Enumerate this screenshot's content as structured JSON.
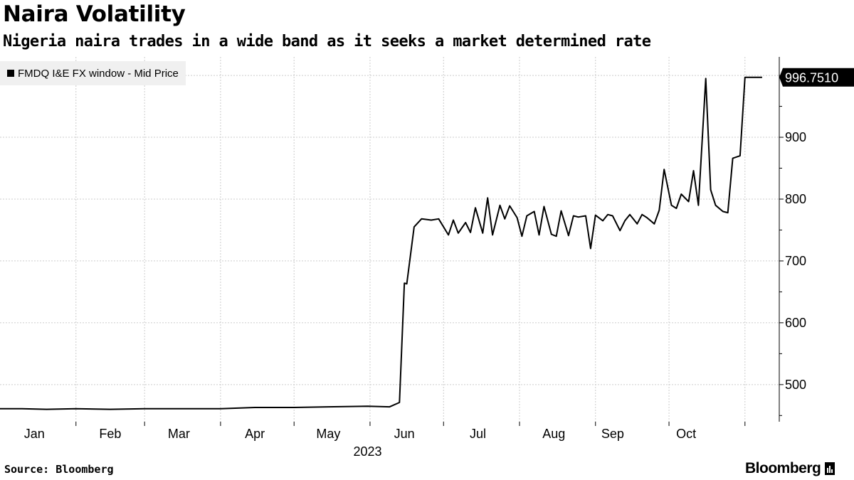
{
  "title": "Naira Volatility",
  "subtitle": "Nigeria naira trades in a wide band as it seeks a market determined rate",
  "legend_label": "FMDQ I&E FX window - Mid Price",
  "source": "Source: Bloomberg",
  "brand": "Bloomberg",
  "colors": {
    "line": "#000000",
    "grid": "#cccccc",
    "legend_bg": "#f0f0f0"
  },
  "chart_data": {
    "type": "line",
    "title": "Naira Volatility",
    "subtitle": "Nigeria naira trades in a wide band as it seeks a market determined rate",
    "xlabel": "",
    "ylabel": "",
    "ylim": [
      440,
      1030
    ],
    "xlim": [
      "2023-01-01",
      "2023-11-15"
    ],
    "y_ticks": [
      500,
      600,
      700,
      800,
      900
    ],
    "x_ticks": [
      {
        "date": "2023-01-15",
        "label": "Jan"
      },
      {
        "date": "2023-02-15",
        "label": "Feb"
      },
      {
        "date": "2023-03-15",
        "label": "Mar"
      },
      {
        "date": "2023-04-15",
        "label": "Apr"
      },
      {
        "date": "2023-05-15",
        "label": "May"
      },
      {
        "date": "2023-06-15",
        "label": "Jun"
      },
      {
        "date": "2023-07-15",
        "label": "Jul"
      },
      {
        "date": "2023-08-15",
        "label": "Aug"
      },
      {
        "date": "2023-09-08",
        "label": "Sep"
      },
      {
        "date": "2023-10-08",
        "label": "Oct"
      }
    ],
    "year_label": "2023",
    "last_value_label": "996.7510",
    "grid": true,
    "legend_position": "top-left",
    "series": [
      {
        "name": "FMDQ I&E FX window - Mid Price",
        "x": [
          "2023-01-01",
          "2023-01-10",
          "2023-01-20",
          "2023-02-01",
          "2023-02-15",
          "2023-03-01",
          "2023-03-15",
          "2023-04-01",
          "2023-04-15",
          "2023-05-01",
          "2023-05-15",
          "2023-05-31",
          "2023-06-09",
          "2023-06-13",
          "2023-06-15",
          "2023-06-16",
          "2023-06-19",
          "2023-06-22",
          "2023-06-26",
          "2023-06-29",
          "2023-07-03",
          "2023-07-05",
          "2023-07-07",
          "2023-07-10",
          "2023-07-12",
          "2023-07-14",
          "2023-07-17",
          "2023-07-19",
          "2023-07-21",
          "2023-07-24",
          "2023-07-26",
          "2023-07-28",
          "2023-07-31",
          "2023-08-02",
          "2023-08-04",
          "2023-08-07",
          "2023-08-09",
          "2023-08-11",
          "2023-08-14",
          "2023-08-16",
          "2023-08-18",
          "2023-08-21",
          "2023-08-23",
          "2023-08-25",
          "2023-08-28",
          "2023-08-30",
          "2023-09-01",
          "2023-09-04",
          "2023-09-06",
          "2023-09-08",
          "2023-09-11",
          "2023-09-13",
          "2023-09-15",
          "2023-09-18",
          "2023-09-20",
          "2023-09-22",
          "2023-09-25",
          "2023-09-27",
          "2023-09-29",
          "2023-10-02",
          "2023-10-04",
          "2023-10-06",
          "2023-10-09",
          "2023-10-11",
          "2023-10-13",
          "2023-10-16",
          "2023-10-18",
          "2023-10-20",
          "2023-10-23",
          "2023-10-25",
          "2023-10-27",
          "2023-10-30",
          "2023-11-01",
          "2023-11-03",
          "2023-11-06",
          "2023-11-08"
        ],
        "values": [
          461,
          461,
          460,
          461,
          460,
          461,
          461,
          461,
          463,
          463,
          464,
          465,
          464,
          471,
          664,
          663,
          755,
          768,
          766,
          768,
          742,
          766,
          745,
          762,
          746,
          786,
          745,
          802,
          742,
          790,
          768,
          789,
          770,
          740,
          773,
          780,
          742,
          788,
          743,
          740,
          781,
          741,
          773,
          771,
          773,
          720,
          774,
          765,
          775,
          773,
          749,
          765,
          775,
          760,
          775,
          770,
          760,
          782,
          848,
          790,
          785,
          808,
          796,
          846,
          790,
          995,
          815,
          790,
          780,
          778,
          866,
          870,
          997,
          997,
          997,
          997
        ]
      }
    ]
  }
}
